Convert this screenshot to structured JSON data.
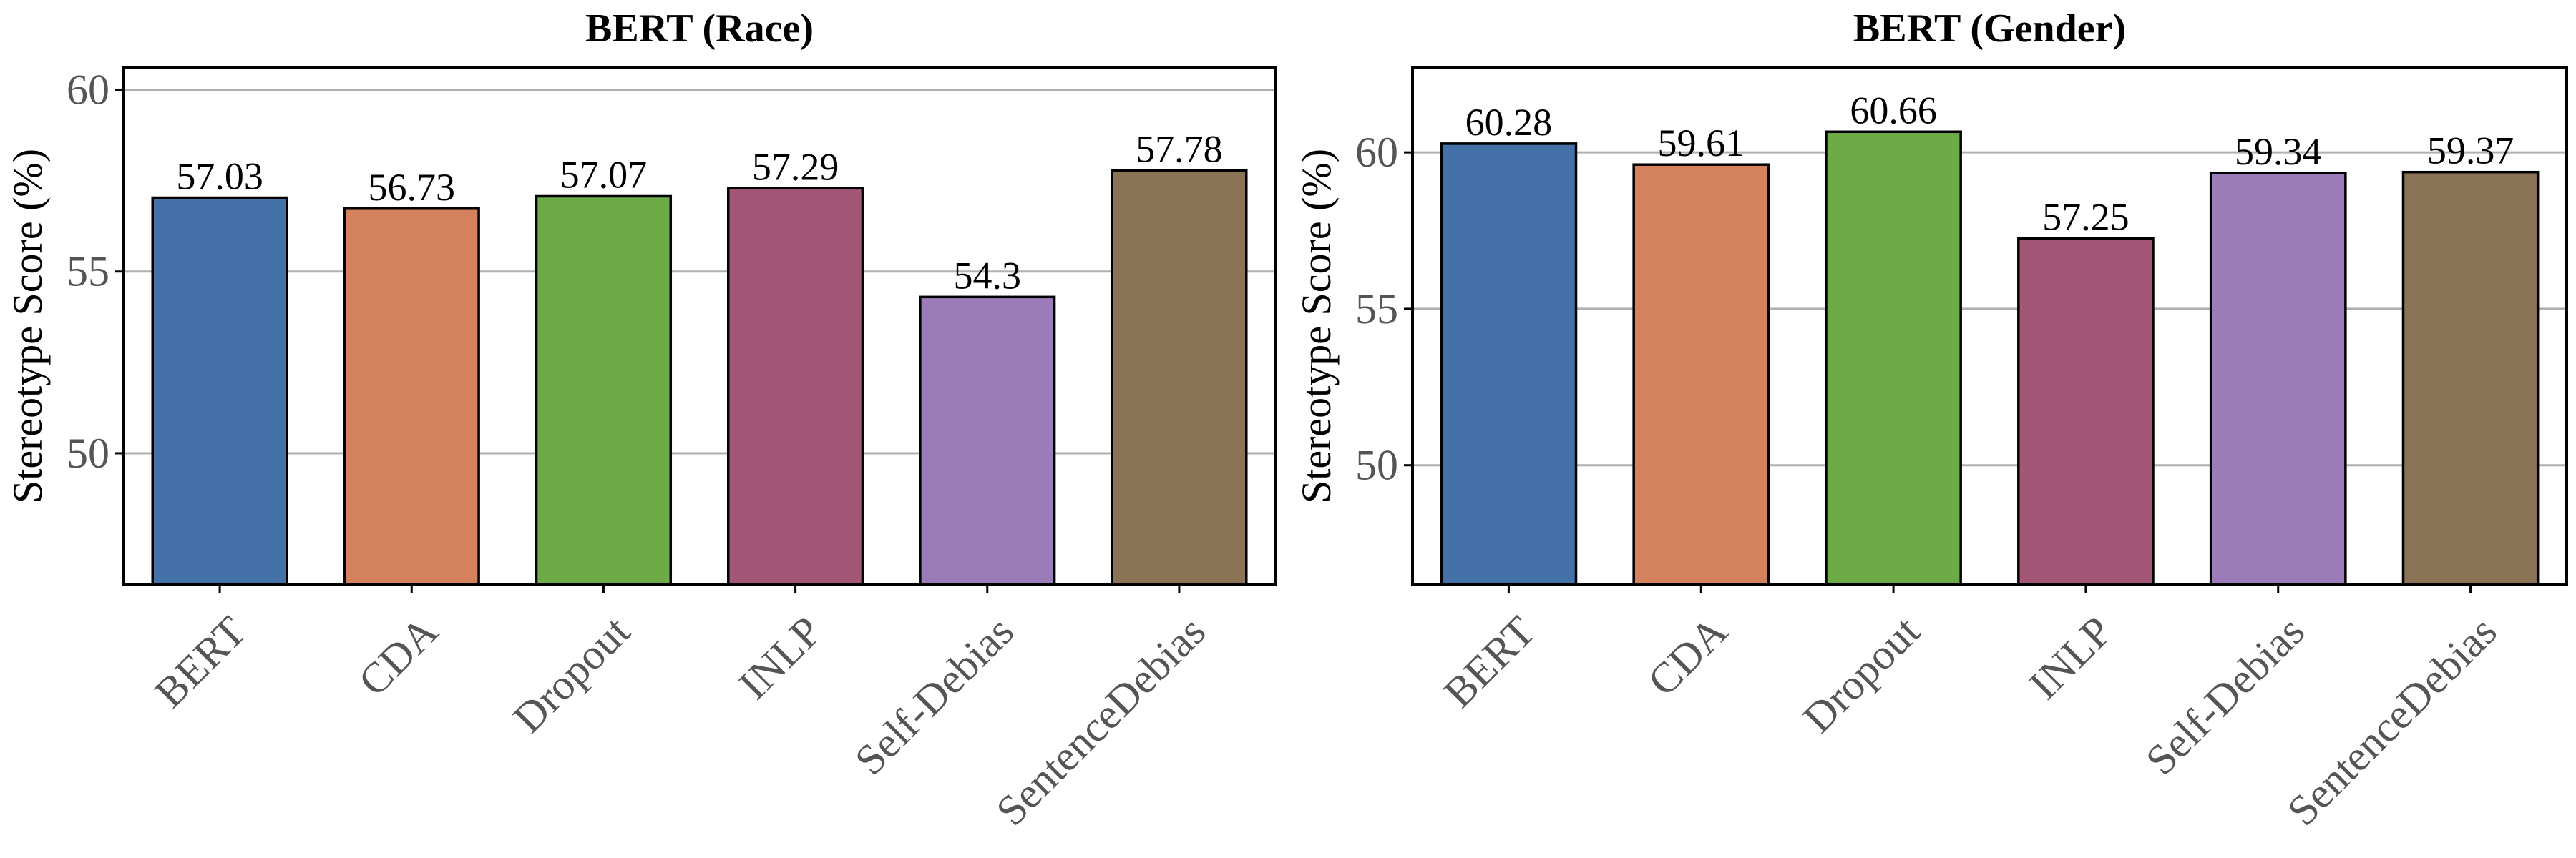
{
  "chart_data": [
    {
      "type": "bar",
      "title": "BERT (Race)",
      "ylabel": "Stereotype Score (%)",
      "xlabel": "",
      "categories": [
        "BERT",
        "CDA",
        "Dropout",
        "INLP",
        "Self-Debias",
        "SentenceDebias"
      ],
      "values": [
        57.03,
        56.73,
        57.07,
        57.29,
        54.3,
        57.78
      ],
      "value_labels": [
        "57.03",
        "56.73",
        "57.07",
        "57.29",
        "54.3",
        "57.78"
      ],
      "ylim": [
        46.4,
        60.6
      ],
      "yticks": [
        50,
        55,
        60
      ],
      "ytick_labels": [
        "50",
        "55",
        "60"
      ],
      "grid": "horizontal",
      "colors": [
        "#4472a8",
        "#d4825e",
        "#6cab46",
        "#a45677",
        "#9b7bb8",
        "#8b7355"
      ]
    },
    {
      "type": "bar",
      "title": "BERT (Gender)",
      "ylabel": "Stereotype Score (%)",
      "xlabel": "",
      "categories": [
        "BERT",
        "CDA",
        "Dropout",
        "INLP",
        "Self-Debias",
        "SentenceDebias"
      ],
      "values": [
        60.28,
        59.61,
        60.66,
        57.25,
        59.34,
        59.37
      ],
      "value_labels": [
        "60.28",
        "59.61",
        "60.66",
        "57.25",
        "59.34",
        "59.37"
      ],
      "ylim": [
        46.2,
        62.7
      ],
      "yticks": [
        50,
        55,
        60
      ],
      "ytick_labels": [
        "50",
        "55",
        "60"
      ],
      "grid": "horizontal",
      "colors": [
        "#4472a8",
        "#d4825e",
        "#6cab46",
        "#a45677",
        "#9b7bb8",
        "#8b7355"
      ]
    }
  ]
}
